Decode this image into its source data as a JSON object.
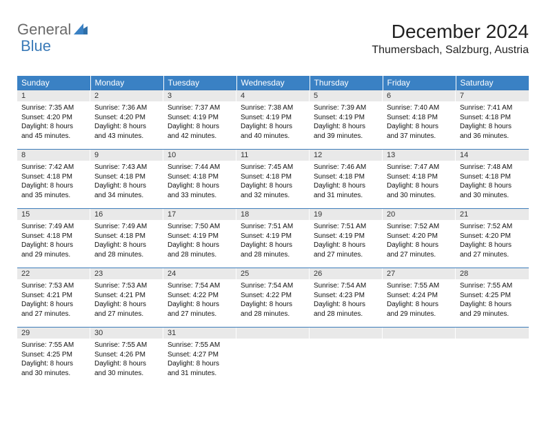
{
  "brand": {
    "text1": "General",
    "text2": "Blue"
  },
  "title": "December 2024",
  "location": "Thumersbach, Salzburg, Austria",
  "colors": {
    "header_bg": "#3a81c4",
    "header_text": "#ffffff",
    "daynum_bg": "#e9e9e9",
    "border": "#3a7ab8",
    "logo_gray": "#6a6a6a",
    "logo_blue": "#3a7ab8"
  },
  "day_headers": [
    "Sunday",
    "Monday",
    "Tuesday",
    "Wednesday",
    "Thursday",
    "Friday",
    "Saturday"
  ],
  "weeks": [
    [
      {
        "n": "1",
        "sr": "7:35 AM",
        "ss": "4:20 PM",
        "dl": "8 hours and 45 minutes."
      },
      {
        "n": "2",
        "sr": "7:36 AM",
        "ss": "4:20 PM",
        "dl": "8 hours and 43 minutes."
      },
      {
        "n": "3",
        "sr": "7:37 AM",
        "ss": "4:19 PM",
        "dl": "8 hours and 42 minutes."
      },
      {
        "n": "4",
        "sr": "7:38 AM",
        "ss": "4:19 PM",
        "dl": "8 hours and 40 minutes."
      },
      {
        "n": "5",
        "sr": "7:39 AM",
        "ss": "4:19 PM",
        "dl": "8 hours and 39 minutes."
      },
      {
        "n": "6",
        "sr": "7:40 AM",
        "ss": "4:18 PM",
        "dl": "8 hours and 37 minutes."
      },
      {
        "n": "7",
        "sr": "7:41 AM",
        "ss": "4:18 PM",
        "dl": "8 hours and 36 minutes."
      }
    ],
    [
      {
        "n": "8",
        "sr": "7:42 AM",
        "ss": "4:18 PM",
        "dl": "8 hours and 35 minutes."
      },
      {
        "n": "9",
        "sr": "7:43 AM",
        "ss": "4:18 PM",
        "dl": "8 hours and 34 minutes."
      },
      {
        "n": "10",
        "sr": "7:44 AM",
        "ss": "4:18 PM",
        "dl": "8 hours and 33 minutes."
      },
      {
        "n": "11",
        "sr": "7:45 AM",
        "ss": "4:18 PM",
        "dl": "8 hours and 32 minutes."
      },
      {
        "n": "12",
        "sr": "7:46 AM",
        "ss": "4:18 PM",
        "dl": "8 hours and 31 minutes."
      },
      {
        "n": "13",
        "sr": "7:47 AM",
        "ss": "4:18 PM",
        "dl": "8 hours and 30 minutes."
      },
      {
        "n": "14",
        "sr": "7:48 AM",
        "ss": "4:18 PM",
        "dl": "8 hours and 30 minutes."
      }
    ],
    [
      {
        "n": "15",
        "sr": "7:49 AM",
        "ss": "4:18 PM",
        "dl": "8 hours and 29 minutes."
      },
      {
        "n": "16",
        "sr": "7:49 AM",
        "ss": "4:18 PM",
        "dl": "8 hours and 28 minutes."
      },
      {
        "n": "17",
        "sr": "7:50 AM",
        "ss": "4:19 PM",
        "dl": "8 hours and 28 minutes."
      },
      {
        "n": "18",
        "sr": "7:51 AM",
        "ss": "4:19 PM",
        "dl": "8 hours and 28 minutes."
      },
      {
        "n": "19",
        "sr": "7:51 AM",
        "ss": "4:19 PM",
        "dl": "8 hours and 27 minutes."
      },
      {
        "n": "20",
        "sr": "7:52 AM",
        "ss": "4:20 PM",
        "dl": "8 hours and 27 minutes."
      },
      {
        "n": "21",
        "sr": "7:52 AM",
        "ss": "4:20 PM",
        "dl": "8 hours and 27 minutes."
      }
    ],
    [
      {
        "n": "22",
        "sr": "7:53 AM",
        "ss": "4:21 PM",
        "dl": "8 hours and 27 minutes."
      },
      {
        "n": "23",
        "sr": "7:53 AM",
        "ss": "4:21 PM",
        "dl": "8 hours and 27 minutes."
      },
      {
        "n": "24",
        "sr": "7:54 AM",
        "ss": "4:22 PM",
        "dl": "8 hours and 27 minutes."
      },
      {
        "n": "25",
        "sr": "7:54 AM",
        "ss": "4:22 PM",
        "dl": "8 hours and 28 minutes."
      },
      {
        "n": "26",
        "sr": "7:54 AM",
        "ss": "4:23 PM",
        "dl": "8 hours and 28 minutes."
      },
      {
        "n": "27",
        "sr": "7:55 AM",
        "ss": "4:24 PM",
        "dl": "8 hours and 29 minutes."
      },
      {
        "n": "28",
        "sr": "7:55 AM",
        "ss": "4:25 PM",
        "dl": "8 hours and 29 minutes."
      }
    ],
    [
      {
        "n": "29",
        "sr": "7:55 AM",
        "ss": "4:25 PM",
        "dl": "8 hours and 30 minutes."
      },
      {
        "n": "30",
        "sr": "7:55 AM",
        "ss": "4:26 PM",
        "dl": "8 hours and 30 minutes."
      },
      {
        "n": "31",
        "sr": "7:55 AM",
        "ss": "4:27 PM",
        "dl": "8 hours and 31 minutes."
      },
      null,
      null,
      null,
      null
    ]
  ],
  "labels": {
    "sunrise": "Sunrise: ",
    "sunset": "Sunset: ",
    "daylight": "Daylight: "
  }
}
